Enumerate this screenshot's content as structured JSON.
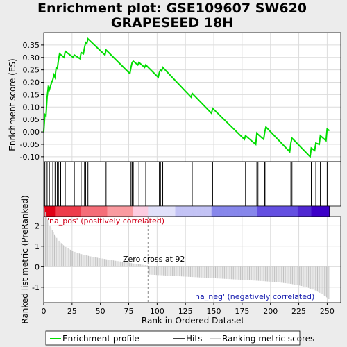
{
  "title_line1": "Enrichment plot: GSE109607 SW620",
  "title_line2": "GRAPESEED 18H",
  "top_ylabel": "Enrichment score (ES)",
  "bottom_ylabel": "Ranked list metric (PreRanked)",
  "xlabel": "Rank in Ordered Dataset",
  "pos_label": "'na_pos' (positively correlated)",
  "neg_label": "'na_neg' (negatively correlated)",
  "zero_cross_label": "Zero cross at 92",
  "legend": {
    "enrichment": "Enrichment profile",
    "hits": "Hits",
    "ranking": "Ranking metric scores"
  },
  "colors": {
    "enrichment": "#00dd00",
    "hits": "#000000",
    "ranking": "#c0c0c0",
    "pos": "#e8001a",
    "neg": "#3a00c8"
  },
  "chart_data": {
    "type": "line",
    "x_ticks": [
      0,
      25,
      50,
      75,
      100,
      125,
      150,
      175,
      200,
      225,
      250
    ],
    "es_y_ticks": [
      -0.1,
      -0.05,
      0.0,
      0.05,
      0.1,
      0.15,
      0.2,
      0.25,
      0.3,
      0.35
    ],
    "es_ylim": [
      -0.12,
      0.4
    ],
    "metric_y_ticks": [
      -1,
      0,
      1,
      2
    ],
    "metric_ylim": [
      -1.75,
      2.45
    ],
    "xlim": [
      0,
      262
    ],
    "n_genes": 252,
    "zero_cross": 92,
    "hits": [
      1,
      3,
      5,
      8,
      10,
      12,
      13,
      15,
      19,
      27,
      33,
      36,
      37,
      39,
      55,
      77,
      78,
      79,
      84,
      90,
      102,
      103,
      105,
      131,
      149,
      178,
      188,
      189,
      195,
      196,
      218,
      219,
      236,
      240,
      244,
      250
    ],
    "enrichment_profile": [
      [
        0,
        0.0
      ],
      [
        1,
        0.07
      ],
      [
        2,
        0.065
      ],
      [
        3,
        0.14
      ],
      [
        4,
        0.18
      ],
      [
        5,
        0.17
      ],
      [
        7,
        0.2
      ],
      [
        8,
        0.21
      ],
      [
        9,
        0.23
      ],
      [
        10,
        0.22
      ],
      [
        11,
        0.26
      ],
      [
        12,
        0.255
      ],
      [
        13,
        0.29
      ],
      [
        14,
        0.315
      ],
      [
        18,
        0.3
      ],
      [
        19,
        0.325
      ],
      [
        26,
        0.3
      ],
      [
        27,
        0.31
      ],
      [
        32,
        0.295
      ],
      [
        33,
        0.32
      ],
      [
        35,
        0.315
      ],
      [
        36,
        0.34
      ],
      [
        37,
        0.36
      ],
      [
        38,
        0.355
      ],
      [
        39,
        0.375
      ],
      [
        54,
        0.31
      ],
      [
        55,
        0.33
      ],
      [
        76,
        0.235
      ],
      [
        77,
        0.26
      ],
      [
        78,
        0.28
      ],
      [
        79,
        0.285
      ],
      [
        83,
        0.27
      ],
      [
        84,
        0.28
      ],
      [
        89,
        0.26
      ],
      [
        90,
        0.27
      ],
      [
        101,
        0.22
      ],
      [
        102,
        0.24
      ],
      [
        103,
        0.25
      ],
      [
        104,
        0.245
      ],
      [
        105,
        0.26
      ],
      [
        130,
        0.14
      ],
      [
        131,
        0.155
      ],
      [
        148,
        0.075
      ],
      [
        149,
        0.095
      ],
      [
        177,
        -0.03
      ],
      [
        178,
        -0.015
      ],
      [
        187,
        -0.05
      ],
      [
        188,
        -0.005
      ],
      [
        189,
        -0.01
      ],
      [
        194,
        -0.03
      ],
      [
        195,
        0.0
      ],
      [
        196,
        0.02
      ],
      [
        217,
        -0.08
      ],
      [
        218,
        -0.045
      ],
      [
        219,
        -0.025
      ],
      [
        235,
        -0.1
      ],
      [
        236,
        -0.065
      ],
      [
        239,
        -0.075
      ],
      [
        240,
        -0.045
      ],
      [
        243,
        -0.05
      ],
      [
        244,
        -0.015
      ],
      [
        249,
        -0.035
      ],
      [
        250,
        0.012
      ],
      [
        252,
        0.005
      ]
    ]
  }
}
